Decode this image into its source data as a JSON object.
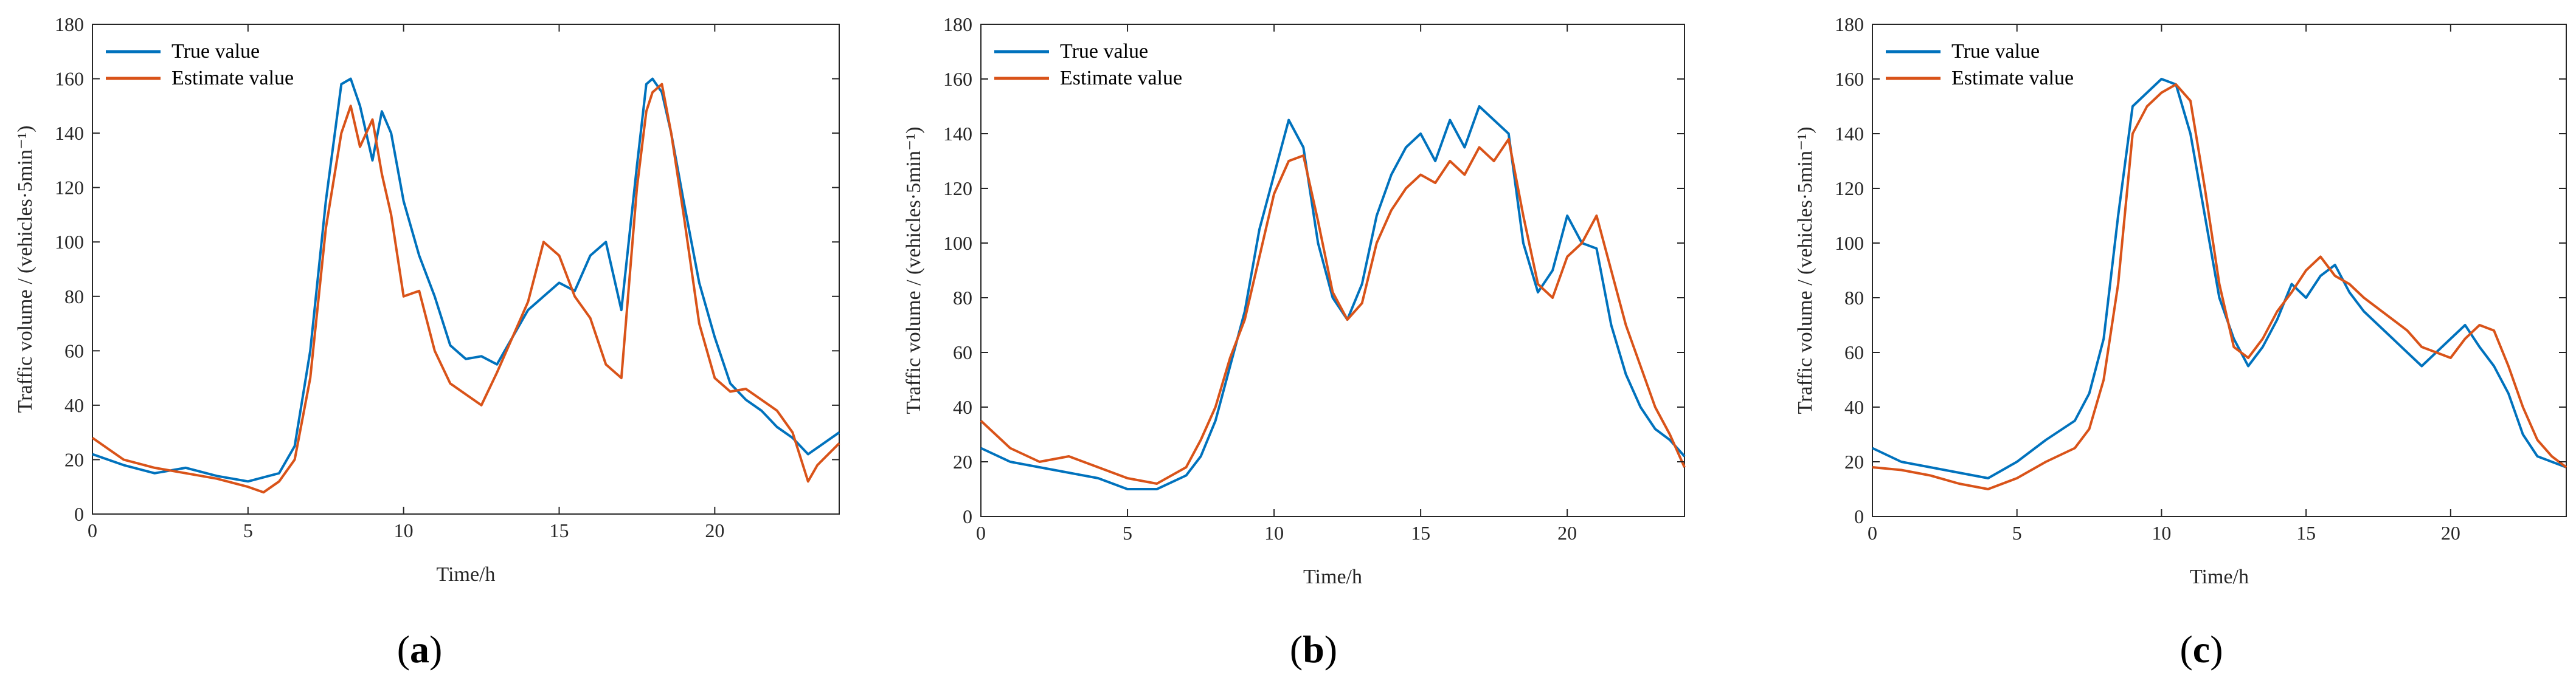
{
  "colors": {
    "true_series": "#0072BD",
    "estimate_series": "#D95319",
    "axis": "#262626"
  },
  "chart_data": [
    {
      "panel": "(a)",
      "panel_prefix": "(",
      "panel_letter": "a",
      "panel_suffix": ")",
      "type": "line",
      "xlabel": "Time/h",
      "ylabel": "Traffic volume / (vehicles·5min⁻¹)",
      "xlim": [
        0,
        24
      ],
      "ylim": [
        0,
        180
      ],
      "xticks": [
        0,
        5,
        10,
        15,
        20
      ],
      "yticks": [
        0,
        20,
        40,
        60,
        80,
        100,
        120,
        140,
        160,
        180
      ],
      "legend": "top-left",
      "series": [
        {
          "name": "True value",
          "key": "true",
          "x": [
            0,
            1,
            2,
            3,
            4,
            5,
            6,
            6.5,
            7,
            7.5,
            8,
            8.3,
            8.6,
            9,
            9.3,
            9.6,
            10,
            10.5,
            11,
            11.5,
            12,
            12.5,
            13,
            13.5,
            14,
            14.5,
            15,
            15.5,
            16,
            16.5,
            17,
            17.5,
            17.8,
            18,
            18.3,
            18.6,
            19,
            19.5,
            20,
            20.5,
            21,
            21.5,
            22,
            22.5,
            23,
            23.5,
            24
          ],
          "y": [
            22,
            18,
            15,
            17,
            14,
            12,
            15,
            25,
            60,
            115,
            158,
            160,
            150,
            130,
            148,
            140,
            115,
            95,
            80,
            62,
            57,
            58,
            55,
            65,
            75,
            80,
            85,
            82,
            95,
            100,
            75,
            128,
            158,
            160,
            155,
            140,
            115,
            85,
            65,
            48,
            42,
            38,
            32,
            28,
            22,
            26,
            30
          ]
        },
        {
          "name": "Estimate value",
          "key": "estimate",
          "x": [
            0,
            1,
            2,
            3,
            4,
            5,
            5.5,
            6,
            6.5,
            7,
            7.5,
            8,
            8.3,
            8.6,
            9,
            9.3,
            9.6,
            10,
            10.5,
            11,
            11.5,
            12,
            12.5,
            13,
            13.5,
            14,
            14.5,
            15,
            15.5,
            16,
            16.5,
            17,
            17.5,
            17.8,
            18,
            18.3,
            18.6,
            19,
            19.5,
            20,
            20.5,
            21,
            21.5,
            22,
            22.5,
            23,
            23.3,
            24
          ],
          "y": [
            28,
            20,
            17,
            15,
            13,
            10,
            8,
            12,
            20,
            50,
            105,
            140,
            150,
            135,
            145,
            125,
            110,
            80,
            82,
            60,
            48,
            44,
            40,
            52,
            65,
            78,
            100,
            95,
            80,
            72,
            55,
            50,
            120,
            148,
            155,
            158,
            140,
            110,
            70,
            50,
            45,
            46,
            42,
            38,
            30,
            12,
            18,
            26
          ]
        }
      ]
    },
    {
      "panel": "(b)",
      "panel_prefix": "(",
      "panel_letter": "b",
      "panel_suffix": ")",
      "type": "line",
      "xlabel": "Time/h",
      "ylabel": "Traffic volume / (vehicles·5min⁻¹)",
      "xlim": [
        0,
        24
      ],
      "ylim": [
        0,
        180
      ],
      "xticks": [
        0,
        5,
        10,
        15,
        20
      ],
      "yticks": [
        0,
        20,
        40,
        60,
        80,
        100,
        120,
        140,
        160,
        180
      ],
      "legend": "top-left",
      "series": [
        {
          "name": "True value",
          "key": "true",
          "x": [
            0,
            1,
            2,
            3,
            4,
            5,
            6,
            7,
            7.5,
            8,
            8.5,
            9,
            9.5,
            10,
            10.5,
            11,
            11.5,
            12,
            12.5,
            13,
            13.5,
            14,
            14.5,
            15,
            15.5,
            16,
            16.5,
            17,
            17.5,
            18,
            18.5,
            19,
            19.5,
            20,
            20.5,
            21,
            21.5,
            22,
            22.5,
            23,
            23.5,
            24
          ],
          "y": [
            25,
            20,
            18,
            16,
            14,
            10,
            10,
            15,
            22,
            35,
            55,
            75,
            105,
            125,
            145,
            135,
            100,
            80,
            72,
            85,
            110,
            125,
            135,
            140,
            130,
            145,
            135,
            150,
            145,
            140,
            100,
            82,
            90,
            110,
            100,
            98,
            70,
            52,
            40,
            32,
            28,
            22
          ]
        },
        {
          "name": "Estimate value",
          "key": "estimate",
          "x": [
            0,
            1,
            2,
            3,
            4,
            5,
            6,
            7,
            7.5,
            8,
            8.5,
            9,
            9.5,
            10,
            10.5,
            11,
            11.5,
            12,
            12.5,
            13,
            13.5,
            14,
            14.5,
            15,
            15.5,
            16,
            16.5,
            17,
            17.5,
            18,
            18.5,
            19,
            19.5,
            20,
            20.5,
            21,
            21.5,
            22,
            22.5,
            23,
            23.5,
            24
          ],
          "y": [
            35,
            25,
            20,
            22,
            18,
            14,
            12,
            18,
            28,
            40,
            58,
            72,
            95,
            118,
            130,
            132,
            108,
            82,
            72,
            78,
            100,
            112,
            120,
            125,
            122,
            130,
            125,
            135,
            130,
            138,
            110,
            85,
            80,
            95,
            100,
            110,
            90,
            70,
            55,
            40,
            30,
            18
          ]
        }
      ]
    },
    {
      "panel": "(c)",
      "panel_prefix": "(",
      "panel_letter": "c",
      "panel_suffix": ")",
      "type": "line",
      "xlabel": "Time/h",
      "ylabel": "Traffic volume / (vehicles·5min⁻¹)",
      "xlim": [
        0,
        24
      ],
      "ylim": [
        0,
        180
      ],
      "xticks": [
        0,
        5,
        10,
        15,
        20
      ],
      "yticks": [
        0,
        20,
        40,
        60,
        80,
        100,
        120,
        140,
        160,
        180
      ],
      "legend": "top-left",
      "series": [
        {
          "name": "True value",
          "key": "true",
          "x": [
            0,
            1,
            2,
            3,
            4,
            5,
            6,
            7,
            7.5,
            8,
            8.5,
            9,
            9.5,
            10,
            10.5,
            11,
            11.5,
            12,
            12.5,
            13,
            13.5,
            14,
            14.5,
            15,
            15.5,
            16,
            16.5,
            17,
            17.5,
            18,
            18.5,
            19,
            19.5,
            20,
            20.5,
            21,
            21.5,
            22,
            22.5,
            23,
            23.5,
            24
          ],
          "y": [
            25,
            20,
            18,
            16,
            14,
            20,
            28,
            35,
            45,
            65,
            110,
            150,
            155,
            160,
            158,
            140,
            110,
            80,
            65,
            55,
            62,
            72,
            85,
            80,
            88,
            92,
            82,
            75,
            70,
            65,
            60,
            55,
            60,
            65,
            70,
            62,
            55,
            45,
            30,
            22,
            20,
            18
          ]
        },
        {
          "name": "Estimate value",
          "key": "estimate",
          "x": [
            0,
            1,
            2,
            3,
            4,
            5,
            6,
            7,
            7.5,
            8,
            8.5,
            9,
            9.5,
            10,
            10.5,
            11,
            11.5,
            12,
            12.5,
            13,
            13.5,
            14,
            14.5,
            15,
            15.5,
            16,
            16.5,
            17,
            17.5,
            18,
            18.5,
            19,
            19.5,
            20,
            20.5,
            21,
            21.5,
            22,
            22.5,
            23,
            23.5,
            24
          ],
          "y": [
            18,
            17,
            15,
            12,
            10,
            14,
            20,
            25,
            32,
            50,
            85,
            140,
            150,
            155,
            158,
            152,
            120,
            85,
            62,
            58,
            65,
            75,
            82,
            90,
            95,
            88,
            85,
            80,
            76,
            72,
            68,
            62,
            60,
            58,
            65,
            70,
            68,
            55,
            40,
            28,
            22,
            18
          ]
        }
      ]
    }
  ]
}
